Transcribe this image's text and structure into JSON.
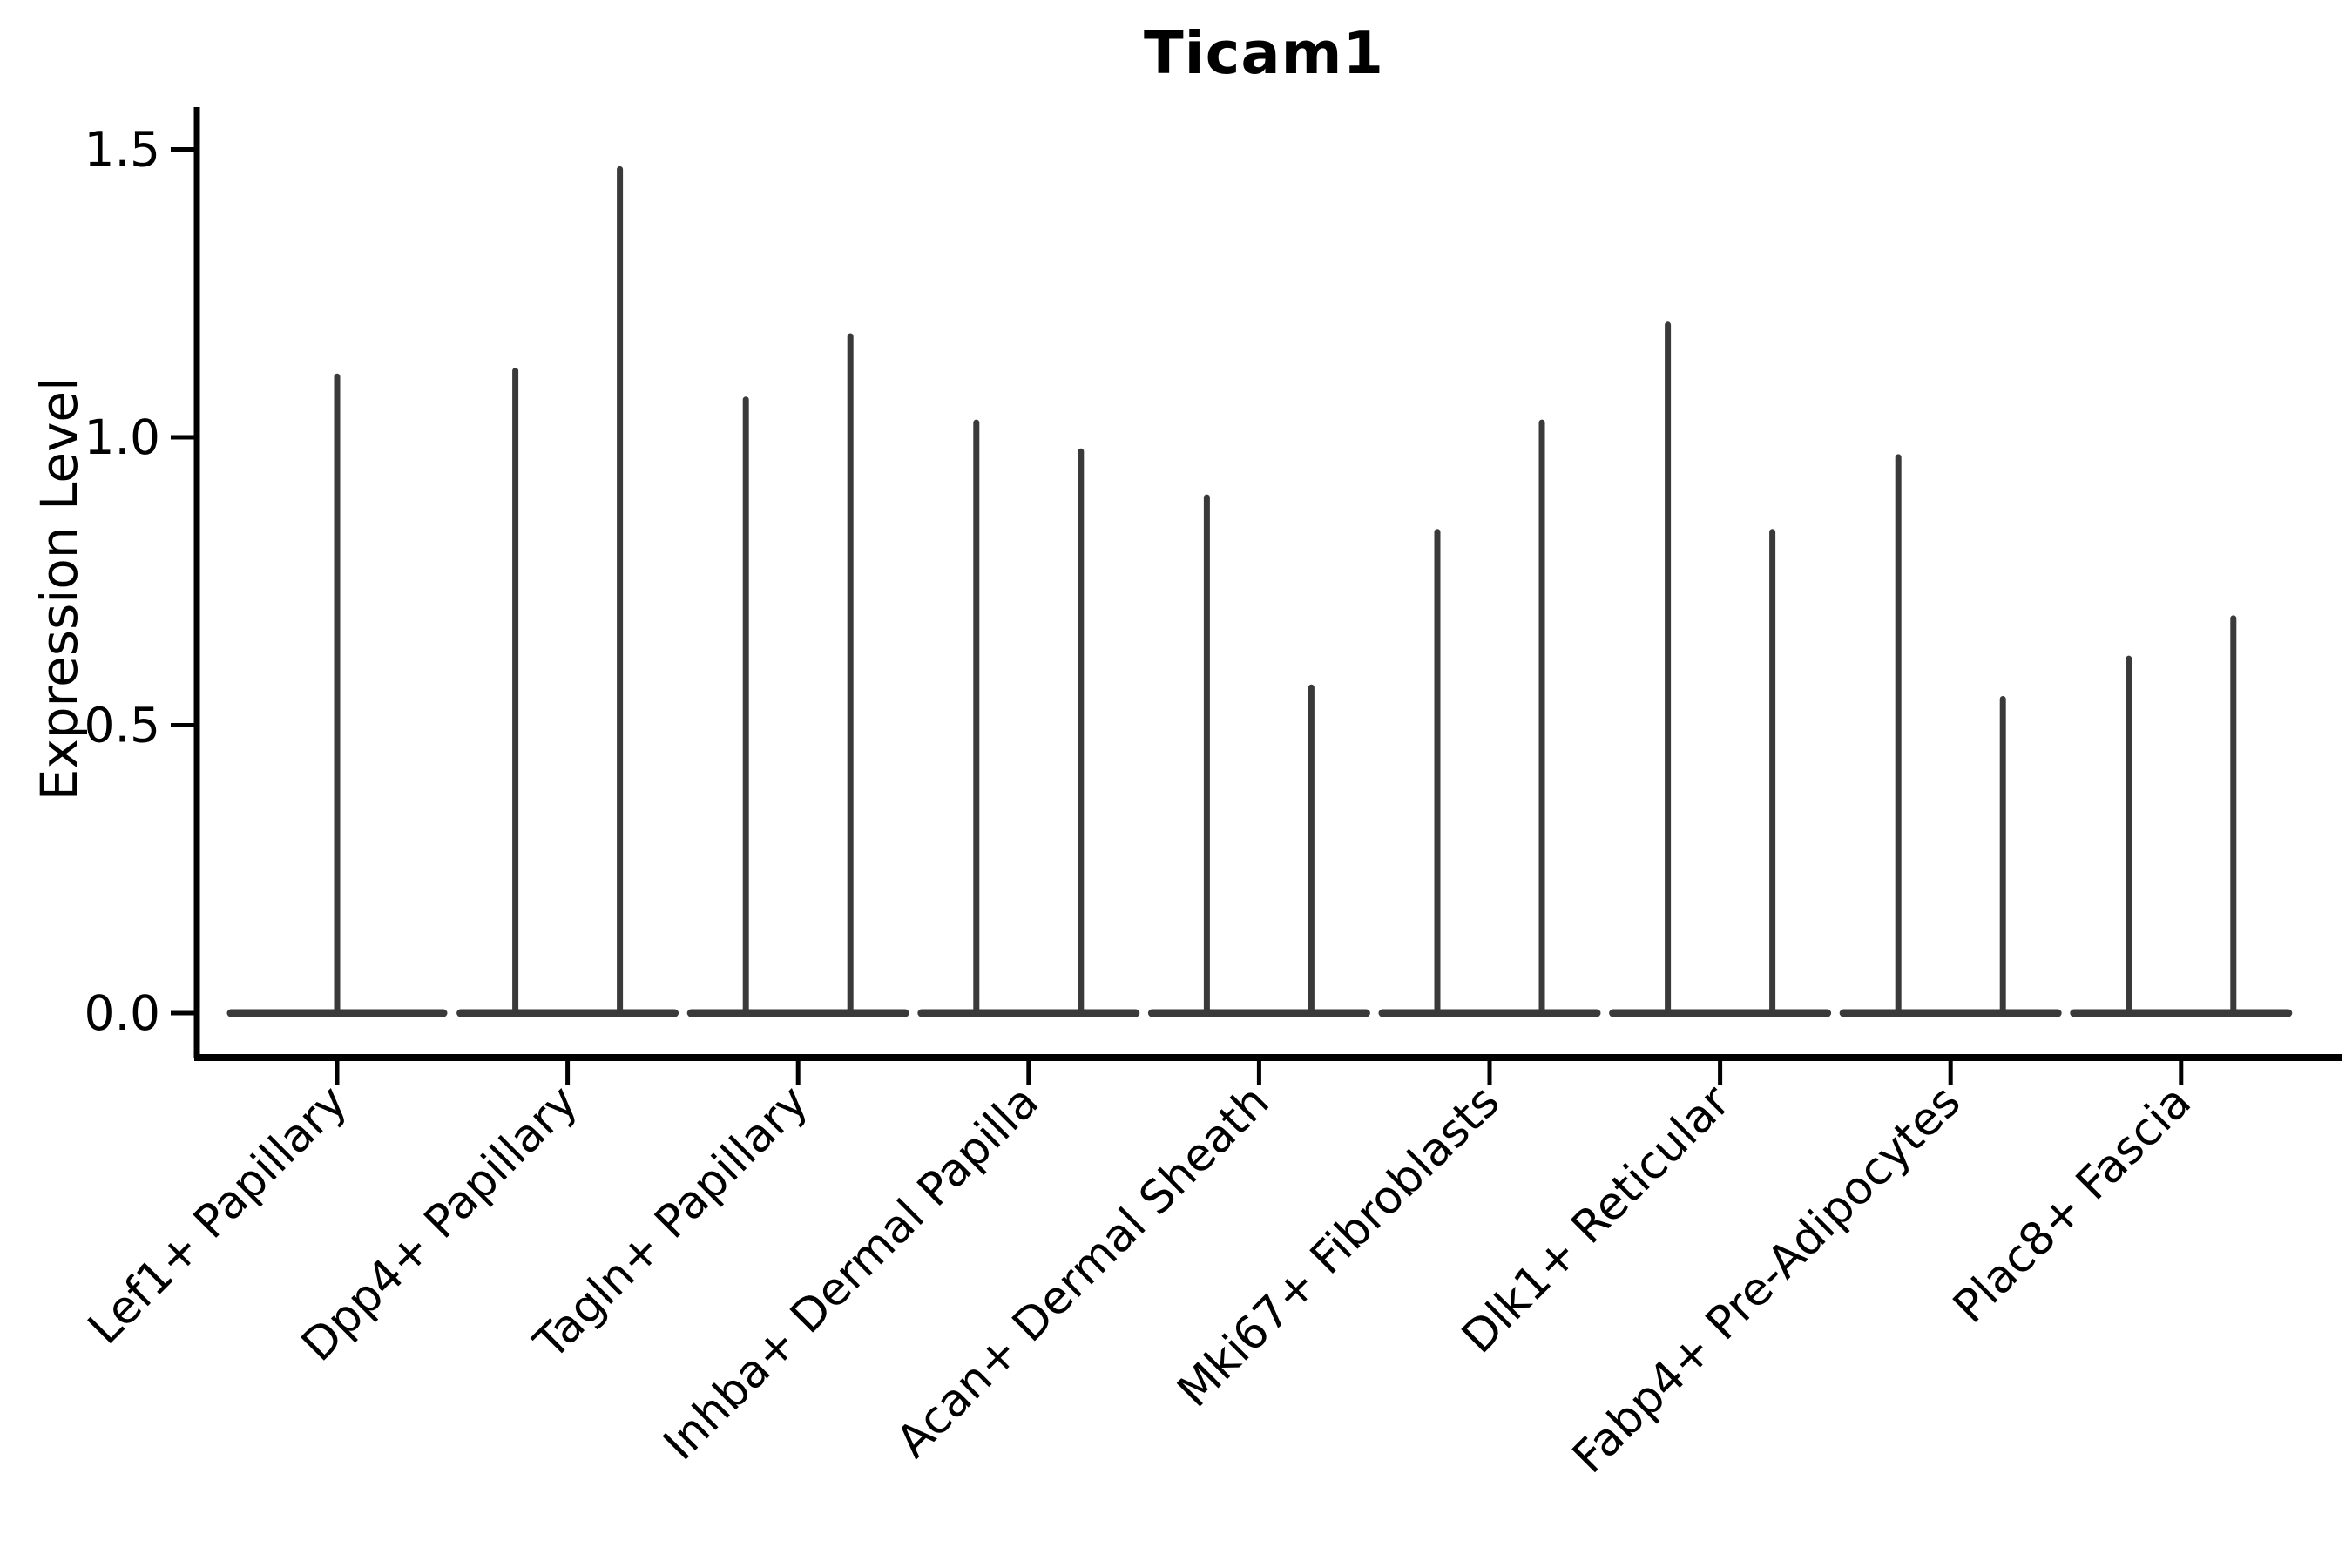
{
  "figure": {
    "title": "Ticam1",
    "background": "#ffffff"
  },
  "y_axis": {
    "label": "Expression Level",
    "tick_labels": [
      "1.5",
      "1.0",
      "0.5",
      "0.0"
    ],
    "tick_values": [
      1.5,
      1.0,
      0.5,
      0.0
    ]
  },
  "x_axis": {
    "label": "",
    "tick_labels": [
      "Lef1+ Papillary",
      "Dpp4+ Papillary",
      "Tagln+ Papillary",
      "Inhba+ Dermal Papilla",
      "Acan+ Dermal Sheath",
      "Mki67+ Fibroblasts",
      "Dlk1+ Reticular",
      "Fabp4+ Pre-Adipocytes",
      "Plac8+ Fascia"
    ]
  },
  "chart_data": {
    "type": "violin",
    "title": "Ticam1",
    "xlabel": "",
    "ylabel": "Expression Level",
    "ylim": [
      -0.08,
      1.58
    ],
    "yticks": [
      0.0,
      0.5,
      1.0,
      1.5
    ],
    "grid": false,
    "legend": "none",
    "baseline_value": 0.0,
    "categories": [
      "Lef1+ Papillary",
      "Dpp4+ Papillary",
      "Tagln+ Papillary",
      "Inhba+ Dermal Papilla",
      "Acan+ Dermal Sheath",
      "Mki67+ Fibroblasts",
      "Dlk1+ Reticular",
      "Fabp4+ Pre-Adipocytes",
      "Plac8+ Fascia"
    ],
    "groups": [
      {
        "label": "Lef1+ Papillary",
        "violin_maxima": [
          1.11
        ]
      },
      {
        "label": "Dpp4+ Papillary",
        "violin_maxima": [
          1.12,
          1.47
        ]
      },
      {
        "label": "Tagln+ Papillary",
        "violin_maxima": [
          1.07,
          1.18
        ]
      },
      {
        "label": "Inhba+ Dermal Papilla",
        "violin_maxima": [
          1.03,
          0.98
        ]
      },
      {
        "label": "Acan+ Dermal Sheath",
        "violin_maxima": [
          0.9,
          0.57
        ]
      },
      {
        "label": "Mki67+ Fibroblasts",
        "violin_maxima": [
          0.84,
          1.03
        ]
      },
      {
        "label": "Dlk1+ Reticular",
        "violin_maxima": [
          1.2,
          0.84
        ]
      },
      {
        "label": "Fabp4+ Pre-Adipocytes",
        "violin_maxima": [
          0.97,
          0.55
        ]
      },
      {
        "label": "Plac8+ Fascia",
        "violin_maxima": [
          0.62,
          0.69
        ]
      }
    ],
    "description": "Each group shows its violin(s) collapsed to a flat base at 0 with a thin spike up to the maximum expression value; single-violin group fills full category width, paired violins are dodged about the tick."
  },
  "colors": {
    "violin_stroke": "#3a3a3a",
    "axis": "#000000",
    "text": "#000000",
    "background": "#ffffff"
  }
}
